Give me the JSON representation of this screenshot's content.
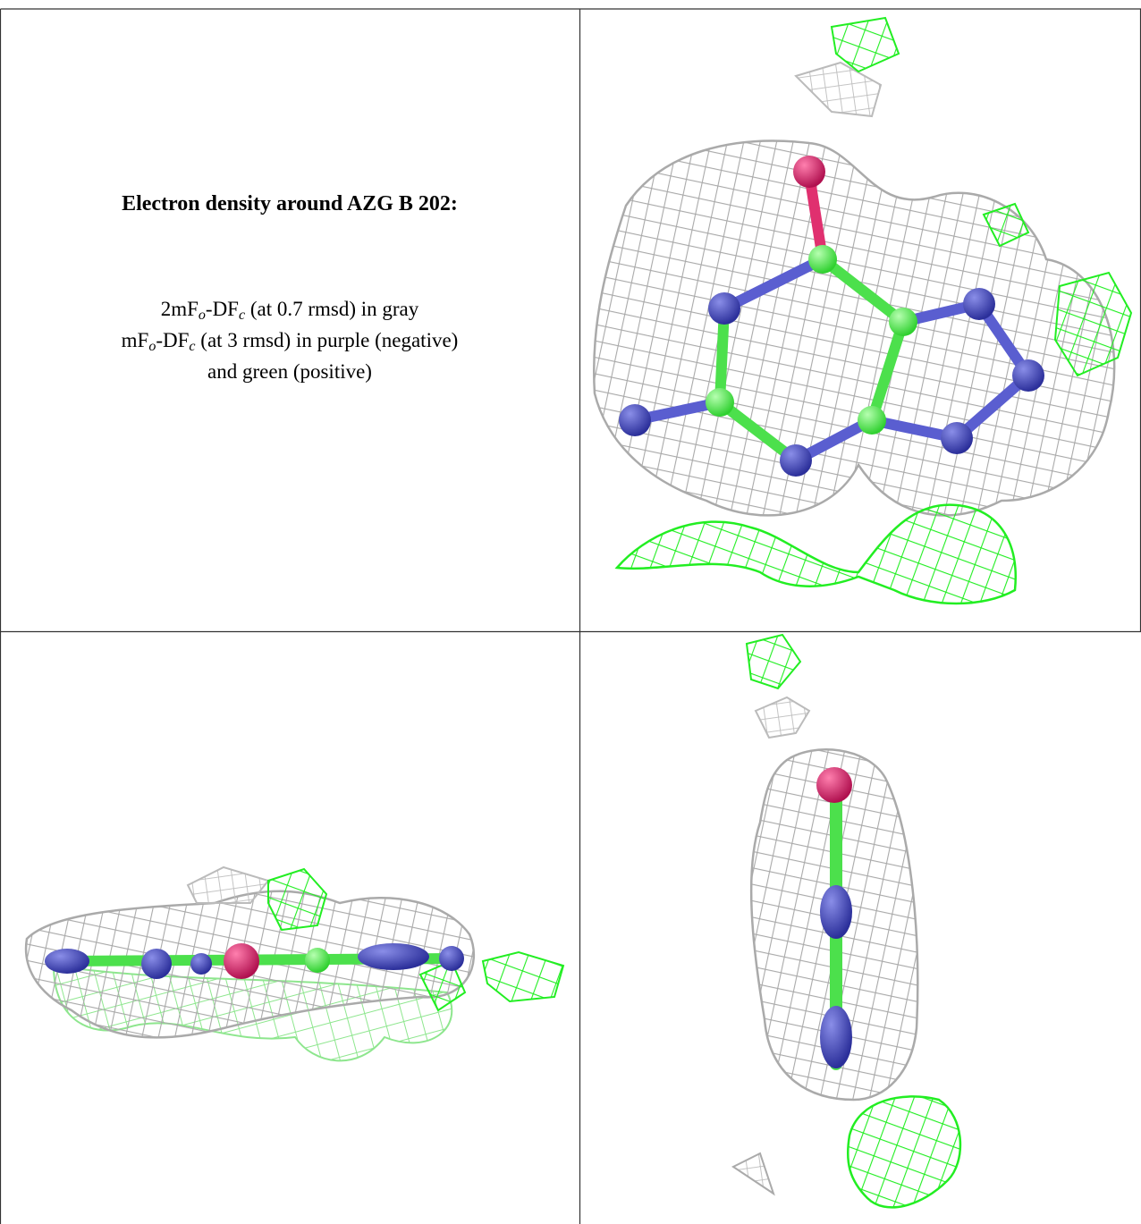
{
  "title": "Electron density around AZG B 202:",
  "legend": [
    [
      "2mF",
      "o",
      "-DF",
      "c",
      " (at 0.7 rmsd) in gray"
    ],
    [
      "mF",
      "o",
      "-DF",
      "c",
      " (at 3 rmsd) in purple (negative)"
    ],
    [
      "and green (positive)"
    ]
  ]
}
